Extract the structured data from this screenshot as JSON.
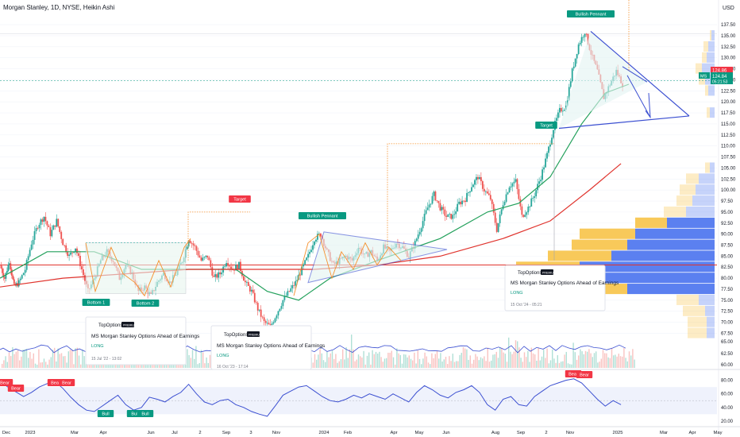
{
  "header": {
    "title": "Morgan Stanley, 1D, NYSE, Heikin Ashi",
    "currency": "USD"
  },
  "colors": {
    "up": "#26a69a",
    "down": "#ef5350",
    "ma_fast": "#22a05b",
    "ma_slow": "#e0342e",
    "pattern": "#3b4fd1",
    "zigzag": "#f5902c",
    "volume_profile_up": "#5b80f0",
    "volume_profile_down": "#f8c95a",
    "rsi": "#3b4fd1",
    "badge_green": "#089981",
    "badge_red": "#f23645"
  },
  "annotations": {
    "bullish_pennant_1": "Bullish Pennant",
    "bullish_pennant_2": "Bullish Pennant",
    "target_1": "Target",
    "target_2": "Target",
    "bottom_1": "Bottom 1",
    "bottom_2": "Bottom 2",
    "bull": "Bull",
    "bear": "Bear"
  },
  "ideas": [
    {
      "author": "TopOptions",
      "badge": "PREMIUM",
      "title": "MS Morgan Stanley Options Ahead of Earnings",
      "direction": "LONG",
      "date": "15 Jul '22 - 13:02"
    },
    {
      "author": "TopOptions",
      "badge": "PREMIUM",
      "title": "MS Morgan Stanley Options Ahead of Earnings",
      "direction": "LONG",
      "date": "16 Oct '23 - 17:14"
    },
    {
      "author": "TopOptions",
      "badge": "PREMIUM",
      "title": "MS Morgan Stanley Options Ahead of Earnings",
      "direction": "LONG",
      "date": "15 Oct '24 - 05:21"
    }
  ],
  "price_tags": {
    "symbol": "MS",
    "last": "124.84",
    "countdown": "05:21:53",
    "high_tag": "124.86"
  },
  "chart_data": [
    {
      "type": "candlestick",
      "title": "Morgan Stanley, 1D, NYSE, Heikin Ashi",
      "y_axis_ticks": [
        137.5,
        135.0,
        132.5,
        130.0,
        127.5,
        125.0,
        122.5,
        120.0,
        117.5,
        115.0,
        112.5,
        110.0,
        107.5,
        105.0,
        102.5,
        100.0,
        97.5,
        95.0,
        92.5,
        90.0,
        87.5,
        85.0,
        82.5,
        80.0,
        77.5,
        75.0,
        72.5,
        70.0,
        67.5
      ],
      "ylim": [
        66.5,
        139.5
      ],
      "x_axis_ticks": [
        "Dec",
        "2023",
        "Mar",
        "Apr",
        "Jun",
        "Jul",
        "2",
        "Sep",
        "3",
        "Nov",
        "2024",
        "Feb",
        "Apr",
        "May",
        "Jun",
        "Aug",
        "Sep",
        "2",
        "Nov",
        "2025",
        "Mar",
        "Apr",
        "May"
      ],
      "series_close": [
        {
          "t": 0,
          "v": 83
        },
        {
          "t": 6,
          "v": 80
        },
        {
          "t": 12,
          "v": 84
        },
        {
          "t": 18,
          "v": 78
        },
        {
          "t": 24,
          "v": 79
        },
        {
          "t": 32,
          "v": 82
        },
        {
          "t": 40,
          "v": 88
        },
        {
          "t": 48,
          "v": 92
        },
        {
          "t": 56,
          "v": 94
        },
        {
          "t": 64,
          "v": 90
        },
        {
          "t": 72,
          "v": 93
        },
        {
          "t": 80,
          "v": 88
        },
        {
          "t": 88,
          "v": 85
        },
        {
          "t": 96,
          "v": 87
        },
        {
          "t": 104,
          "v": 82
        },
        {
          "t": 112,
          "v": 77
        },
        {
          "t": 120,
          "v": 80
        },
        {
          "t": 128,
          "v": 84
        },
        {
          "t": 136,
          "v": 86
        },
        {
          "t": 144,
          "v": 84
        },
        {
          "t": 152,
          "v": 80
        },
        {
          "t": 160,
          "v": 83
        },
        {
          "t": 168,
          "v": 81
        },
        {
          "t": 176,
          "v": 77
        },
        {
          "t": 184,
          "v": 78
        },
        {
          "t": 192,
          "v": 76
        },
        {
          "t": 200,
          "v": 79
        },
        {
          "t": 208,
          "v": 81
        },
        {
          "t": 216,
          "v": 79
        },
        {
          "t": 224,
          "v": 81
        },
        {
          "t": 232,
          "v": 84
        },
        {
          "t": 240,
          "v": 89
        },
        {
          "t": 248,
          "v": 87
        },
        {
          "t": 256,
          "v": 84
        },
        {
          "t": 264,
          "v": 85
        },
        {
          "t": 272,
          "v": 80
        },
        {
          "t": 280,
          "v": 81
        },
        {
          "t": 288,
          "v": 84
        },
        {
          "t": 296,
          "v": 82
        },
        {
          "t": 304,
          "v": 83
        },
        {
          "t": 312,
          "v": 79
        },
        {
          "t": 320,
          "v": 77
        },
        {
          "t": 328,
          "v": 73
        },
        {
          "t": 336,
          "v": 70
        },
        {
          "t": 344,
          "v": 69
        },
        {
          "t": 352,
          "v": 72
        },
        {
          "t": 360,
          "v": 75
        },
        {
          "t": 368,
          "v": 77
        },
        {
          "t": 376,
          "v": 79
        },
        {
          "t": 384,
          "v": 82
        },
        {
          "t": 392,
          "v": 85
        },
        {
          "t": 400,
          "v": 89
        },
        {
          "t": 408,
          "v": 90
        },
        {
          "t": 416,
          "v": 86
        },
        {
          "t": 424,
          "v": 83
        },
        {
          "t": 432,
          "v": 84
        },
        {
          "t": 440,
          "v": 85
        },
        {
          "t": 448,
          "v": 84
        },
        {
          "t": 456,
          "v": 87
        },
        {
          "t": 464,
          "v": 85
        },
        {
          "t": 472,
          "v": 86
        },
        {
          "t": 480,
          "v": 84
        },
        {
          "t": 488,
          "v": 87
        },
        {
          "t": 496,
          "v": 86
        },
        {
          "t": 504,
          "v": 88
        },
        {
          "t": 512,
          "v": 87
        },
        {
          "t": 520,
          "v": 85
        },
        {
          "t": 528,
          "v": 88
        },
        {
          "t": 536,
          "v": 92
        },
        {
          "t": 544,
          "v": 96
        },
        {
          "t": 552,
          "v": 99
        },
        {
          "t": 560,
          "v": 96
        },
        {
          "t": 568,
          "v": 94
        },
        {
          "t": 576,
          "v": 94
        },
        {
          "t": 584,
          "v": 97
        },
        {
          "t": 592,
          "v": 98
        },
        {
          "t": 600,
          "v": 101
        },
        {
          "t": 608,
          "v": 103
        },
        {
          "t": 616,
          "v": 100
        },
        {
          "t": 624,
          "v": 98
        },
        {
          "t": 632,
          "v": 91
        },
        {
          "t": 640,
          "v": 97
        },
        {
          "t": 648,
          "v": 101
        },
        {
          "t": 656,
          "v": 102
        },
        {
          "t": 664,
          "v": 94
        },
        {
          "t": 672,
          "v": 96
        },
        {
          "t": 680,
          "v": 99
        },
        {
          "t": 688,
          "v": 103
        },
        {
          "t": 696,
          "v": 108
        },
        {
          "t": 704,
          "v": 114
        },
        {
          "t": 712,
          "v": 118
        },
        {
          "t": 720,
          "v": 119
        },
        {
          "t": 728,
          "v": 127
        },
        {
          "t": 736,
          "v": 133
        },
        {
          "t": 744,
          "v": 136
        },
        {
          "t": 752,
          "v": 131
        },
        {
          "t": 760,
          "v": 127
        },
        {
          "t": 768,
          "v": 121
        },
        {
          "t": 776,
          "v": 124
        },
        {
          "t": 784,
          "v": 127
        },
        {
          "t": 792,
          "v": 124
        }
      ],
      "ma_fast": [
        {
          "t": 0,
          "v": 80
        },
        {
          "t": 60,
          "v": 86
        },
        {
          "t": 120,
          "v": 86
        },
        {
          "t": 180,
          "v": 82
        },
        {
          "t": 240,
          "v": 82
        },
        {
          "t": 300,
          "v": 82
        },
        {
          "t": 340,
          "v": 77
        },
        {
          "t": 380,
          "v": 75
        },
        {
          "t": 420,
          "v": 80
        },
        {
          "t": 480,
          "v": 84
        },
        {
          "t": 560,
          "v": 89
        },
        {
          "t": 620,
          "v": 95
        },
        {
          "t": 660,
          "v": 97
        },
        {
          "t": 700,
          "v": 103
        },
        {
          "t": 740,
          "v": 115
        },
        {
          "t": 770,
          "v": 122
        },
        {
          "t": 800,
          "v": 124
        }
      ],
      "ma_slow": [
        {
          "t": 0,
          "v": 78
        },
        {
          "t": 80,
          "v": 80
        },
        {
          "t": 160,
          "v": 81
        },
        {
          "t": 240,
          "v": 82
        },
        {
          "t": 320,
          "v": 82
        },
        {
          "t": 400,
          "v": 82
        },
        {
          "t": 480,
          "v": 83
        },
        {
          "t": 560,
          "v": 85
        },
        {
          "t": 640,
          "v": 89
        },
        {
          "t": 700,
          "v": 93
        },
        {
          "t": 750,
          "v": 100
        },
        {
          "t": 790,
          "v": 106
        }
      ],
      "horizontal_levels": [
        {
          "name": "support",
          "value": 83
        },
        {
          "name": "last",
          "value": 124.84
        }
      ],
      "volume_profile": [
        {
          "price": 67.5,
          "up": 0.05,
          "down": 0.12
        },
        {
          "price": 70,
          "up": 0.05,
          "down": 0.12
        },
        {
          "price": 72.5,
          "up": 0.06,
          "down": 0.14
        },
        {
          "price": 75,
          "up": 0.1,
          "down": 0.14
        },
        {
          "price": 77.5,
          "up": 0.55,
          "down": 0.3
        },
        {
          "price": 80,
          "up": 0.7,
          "down": 0.35
        },
        {
          "price": 82.5,
          "up": 0.85,
          "down": 0.4
        },
        {
          "price": 85,
          "up": 0.65,
          "down": 0.4
        },
        {
          "price": 87.5,
          "up": 0.55,
          "down": 0.35
        },
        {
          "price": 90,
          "up": 0.5,
          "down": 0.35
        },
        {
          "price": 92.5,
          "up": 0.3,
          "down": 0.2
        },
        {
          "price": 95,
          "up": 0.18,
          "down": 0.14
        },
        {
          "price": 97.5,
          "up": 0.14,
          "down": 0.1
        },
        {
          "price": 100,
          "up": 0.12,
          "down": 0.1
        },
        {
          "price": 102.5,
          "up": 0.1,
          "down": 0.08
        },
        {
          "price": 105,
          "up": 0.03,
          "down": 0.03
        },
        {
          "price": 117.5,
          "up": 0.03,
          "down": 0.02
        },
        {
          "price": 122.5,
          "up": 0.04,
          "down": 0.02
        },
        {
          "price": 125,
          "up": 0.06,
          "down": 0.04
        },
        {
          "price": 127.5,
          "up": 0.08,
          "down": 0.04
        },
        {
          "price": 130,
          "up": 0.05,
          "down": 0.03
        },
        {
          "price": 132.5,
          "up": 0.04,
          "down": 0.03
        },
        {
          "price": 135,
          "up": 0.02,
          "down": 0.01
        }
      ]
    },
    {
      "type": "bar",
      "title": "Volume",
      "y_axis_ticks": [
        65.0,
        62.5,
        60.0
      ],
      "note": "volume histogram with moving average"
    },
    {
      "type": "line",
      "title": "RSI",
      "y_axis_ticks": [
        80.0,
        60.0,
        40.0,
        20.0
      ],
      "ylim": [
        14,
        90
      ],
      "band": [
        30,
        70
      ],
      "values": [
        {
          "t": 0,
          "v": 78
        },
        {
          "t": 10,
          "v": 70
        },
        {
          "t": 20,
          "v": 63
        },
        {
          "t": 30,
          "v": 56
        },
        {
          "t": 40,
          "v": 62
        },
        {
          "t": 50,
          "v": 70
        },
        {
          "t": 60,
          "v": 75
        },
        {
          "t": 70,
          "v": 78
        },
        {
          "t": 80,
          "v": 68
        },
        {
          "t": 90,
          "v": 55
        },
        {
          "t": 100,
          "v": 44
        },
        {
          "t": 110,
          "v": 36
        },
        {
          "t": 120,
          "v": 34
        },
        {
          "t": 130,
          "v": 42
        },
        {
          "t": 140,
          "v": 50
        },
        {
          "t": 150,
          "v": 58
        },
        {
          "t": 160,
          "v": 44
        },
        {
          "t": 170,
          "v": 36
        },
        {
          "t": 180,
          "v": 40
        },
        {
          "t": 190,
          "v": 55
        },
        {
          "t": 200,
          "v": 52
        },
        {
          "t": 210,
          "v": 48
        },
        {
          "t": 220,
          "v": 56
        },
        {
          "t": 230,
          "v": 62
        },
        {
          "t": 240,
          "v": 74
        },
        {
          "t": 250,
          "v": 60
        },
        {
          "t": 260,
          "v": 48
        },
        {
          "t": 270,
          "v": 44
        },
        {
          "t": 280,
          "v": 50
        },
        {
          "t": 290,
          "v": 52
        },
        {
          "t": 300,
          "v": 44
        },
        {
          "t": 310,
          "v": 40
        },
        {
          "t": 320,
          "v": 34
        },
        {
          "t": 330,
          "v": 30
        },
        {
          "t": 340,
          "v": 27
        },
        {
          "t": 350,
          "v": 42
        },
        {
          "t": 360,
          "v": 58
        },
        {
          "t": 370,
          "v": 64
        },
        {
          "t": 380,
          "v": 70
        },
        {
          "t": 390,
          "v": 72
        },
        {
          "t": 400,
          "v": 64
        },
        {
          "t": 410,
          "v": 56
        },
        {
          "t": 420,
          "v": 50
        },
        {
          "t": 430,
          "v": 48
        },
        {
          "t": 440,
          "v": 52
        },
        {
          "t": 450,
          "v": 58
        },
        {
          "t": 460,
          "v": 54
        },
        {
          "t": 470,
          "v": 60
        },
        {
          "t": 480,
          "v": 56
        },
        {
          "t": 490,
          "v": 52
        },
        {
          "t": 500,
          "v": 60
        },
        {
          "t": 510,
          "v": 54
        },
        {
          "t": 520,
          "v": 48
        },
        {
          "t": 530,
          "v": 62
        },
        {
          "t": 540,
          "v": 72
        },
        {
          "t": 550,
          "v": 66
        },
        {
          "t": 560,
          "v": 58
        },
        {
          "t": 570,
          "v": 54
        },
        {
          "t": 580,
          "v": 62
        },
        {
          "t": 590,
          "v": 66
        },
        {
          "t": 600,
          "v": 72
        },
        {
          "t": 610,
          "v": 62
        },
        {
          "t": 620,
          "v": 44
        },
        {
          "t": 630,
          "v": 36
        },
        {
          "t": 640,
          "v": 52
        },
        {
          "t": 650,
          "v": 56
        },
        {
          "t": 660,
          "v": 44
        },
        {
          "t": 670,
          "v": 42
        },
        {
          "t": 680,
          "v": 56
        },
        {
          "t": 690,
          "v": 64
        },
        {
          "t": 700,
          "v": 72
        },
        {
          "t": 710,
          "v": 76
        },
        {
          "t": 720,
          "v": 80
        },
        {
          "t": 730,
          "v": 82
        },
        {
          "t": 740,
          "v": 76
        },
        {
          "t": 750,
          "v": 64
        },
        {
          "t": 760,
          "v": 52
        },
        {
          "t": 770,
          "v": 42
        },
        {
          "t": 780,
          "v": 50
        },
        {
          "t": 790,
          "v": 44
        }
      ]
    }
  ]
}
